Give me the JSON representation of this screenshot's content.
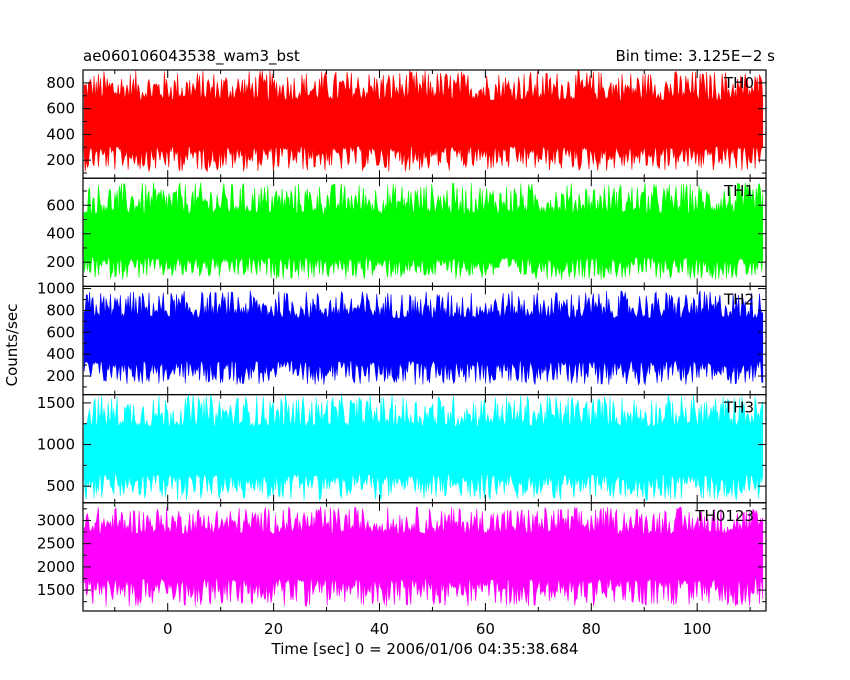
{
  "header": {
    "title": "ae060106043538_wam3_bst",
    "bin_time": "Bin time: 3.125E−2 s"
  },
  "chart_data": {
    "type": "line",
    "title": "ae060106043538_wam3_bst",
    "xlabel": "Time [sec] 0 = 2006/01/06 04:35:38.684",
    "ylabel": "Counts/sec",
    "xlim": [
      -16,
      113
    ],
    "x_ticks": [
      0,
      20,
      40,
      60,
      80,
      100
    ],
    "x_tick_labels": [
      "0",
      "20",
      "40",
      "60",
      "80",
      "100"
    ],
    "grid": false,
    "panels": [
      {
        "name": "TH0",
        "color": "#ff0000",
        "ylim": [
          60,
          900
        ],
        "y_ticks": [
          200,
          400,
          600,
          800
        ],
        "y_tick_labels": [
          "200",
          "400",
          "600",
          "800"
        ],
        "x_start": -15.8,
        "x_end": 112.4,
        "mean": 470,
        "low": 110,
        "high": 900
      },
      {
        "name": "TH1",
        "color": "#00ff00",
        "ylim": [
          30,
          790
        ],
        "y_ticks": [
          200,
          400,
          600
        ],
        "y_tick_labels": [
          "200",
          "400",
          "600"
        ],
        "x_start": -15.8,
        "x_end": 112.4,
        "mean": 360,
        "low": 80,
        "high": 760
      },
      {
        "name": "TH2",
        "color": "#0000ff",
        "ylim": [
          30,
          1020
        ],
        "y_ticks": [
          200,
          400,
          600,
          800,
          1000
        ],
        "y_tick_labels": [
          "200",
          "400",
          "600",
          "800",
          "1000"
        ],
        "x_start": -15.8,
        "x_end": 112.4,
        "mean": 520,
        "low": 120,
        "high": 980
      },
      {
        "name": "TH3",
        "color": "#00ffff",
        "ylim": [
          300,
          1600
        ],
        "y_ticks": [
          500,
          1000,
          1500
        ],
        "y_tick_labels": [
          "500",
          "1000",
          "1500"
        ],
        "x_start": -15.8,
        "x_end": 112.4,
        "mean": 900,
        "low": 330,
        "high": 1600
      },
      {
        "name": "TH0123",
        "color": "#ff00ff",
        "ylim": [
          1050,
          3380
        ],
        "y_ticks": [
          1500,
          2000,
          2500,
          3000
        ],
        "y_tick_labels": [
          "1500",
          "2000",
          "2500",
          "3000"
        ],
        "x_start": -15.8,
        "x_end": 112.4,
        "mean": 2230,
        "low": 1150,
        "high": 3300
      }
    ]
  }
}
